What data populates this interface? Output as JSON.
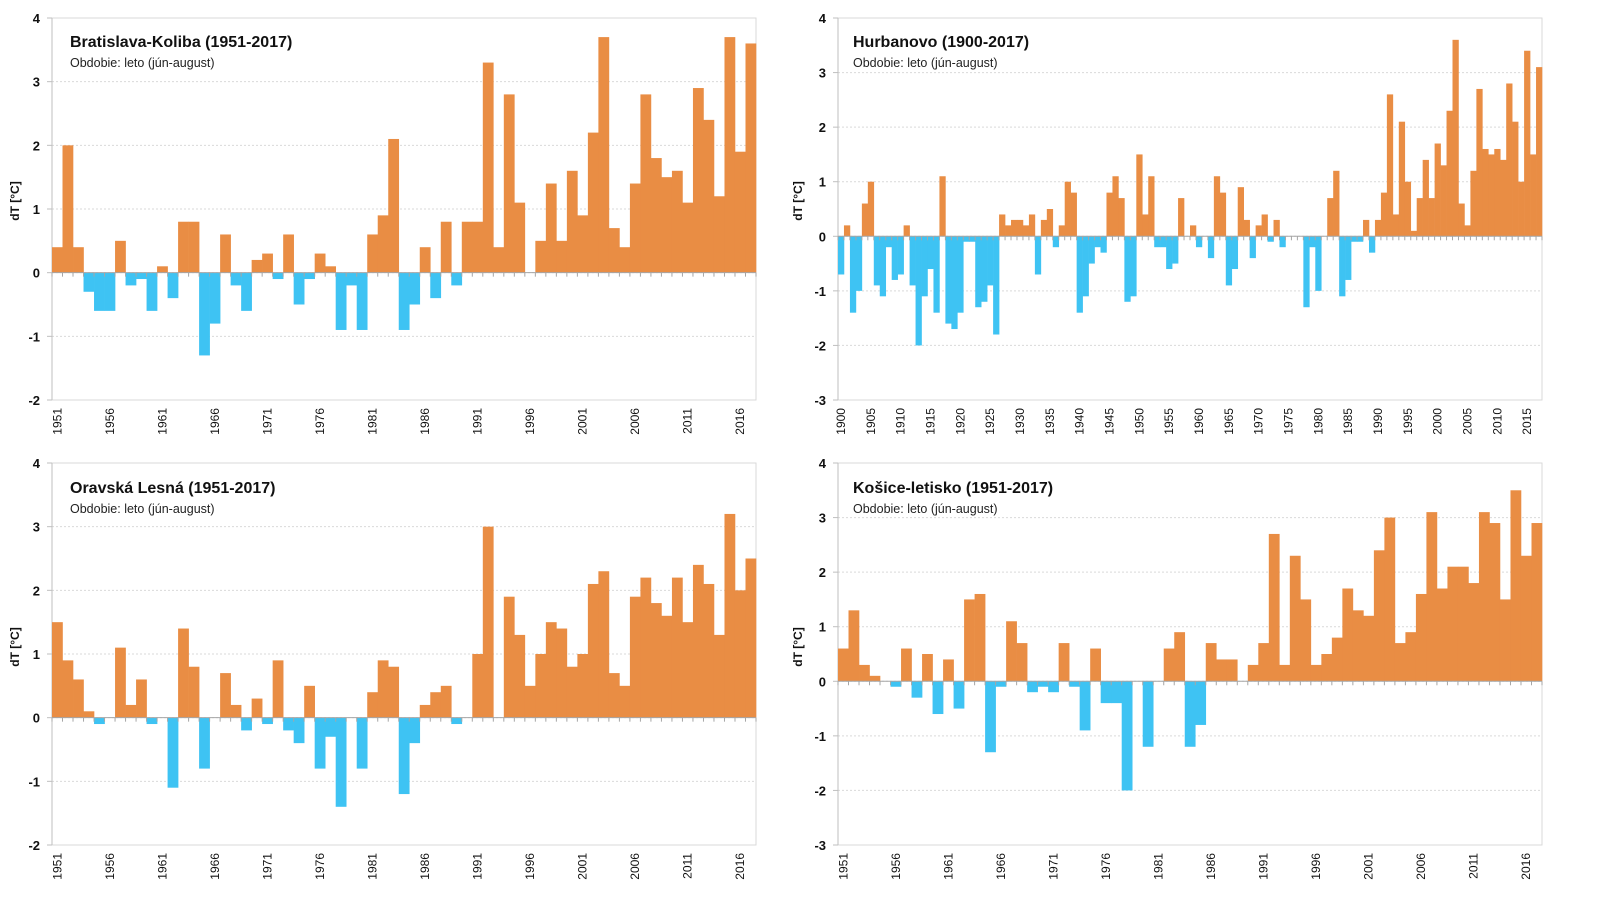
{
  "colors": {
    "positive": "#E98D44",
    "negative": "#3EC3F3",
    "grid": "#d9d9d9",
    "axis": "#bfbfbf"
  },
  "chart_data": [
    {
      "type": "bar",
      "title": "Bratislava-Koliba (1951-2017)",
      "subtitle": "Obdobie: leto (jún-august)",
      "xlabel": "",
      "ylabel": "dT [°C]",
      "ylim": [
        -2,
        4
      ],
      "yticks": [
        4,
        3,
        2,
        1,
        0,
        -1,
        -2
      ],
      "x_start": 1951,
      "x_end": 2017,
      "xtick_step": 5,
      "grid": true,
      "values": [
        0.4,
        2.0,
        0.4,
        -0.3,
        -0.6,
        -0.6,
        0.5,
        -0.2,
        -0.1,
        -0.6,
        0.1,
        -0.4,
        0.8,
        0.8,
        -1.3,
        -0.8,
        0.6,
        -0.2,
        -0.6,
        0.2,
        0.3,
        -0.1,
        0.6,
        -0.5,
        -0.1,
        0.3,
        0.1,
        -0.9,
        -0.2,
        -0.9,
        0.6,
        0.9,
        2.1,
        -0.9,
        -0.5,
        0.4,
        -0.4,
        0.8,
        -0.2,
        0.8,
        0.8,
        3.3,
        0.4,
        2.8,
        1.1,
        0.0,
        0.5,
        1.4,
        0.5,
        1.6,
        0.9,
        2.2,
        3.7,
        0.7,
        0.4,
        1.4,
        2.8,
        1.8,
        1.5,
        1.6,
        1.1,
        2.9,
        2.4,
        1.2,
        3.7,
        1.9,
        3.6
      ]
    },
    {
      "type": "bar",
      "title": "Hurbanovo (1900-2017)",
      "subtitle": "Obdobie: leto (jún-august)",
      "xlabel": "",
      "ylabel": "dT [°C]",
      "ylim": [
        -3,
        4
      ],
      "yticks": [
        4,
        3,
        2,
        1,
        0,
        -1,
        -2,
        -3
      ],
      "x_start": 1900,
      "x_end": 2017,
      "xtick_step": 5,
      "grid": true,
      "values": [
        -0.7,
        0.2,
        -1.4,
        -1.0,
        0.6,
        1.0,
        -0.9,
        -1.1,
        -0.2,
        -0.8,
        -0.7,
        0.2,
        -0.9,
        -2.0,
        -1.1,
        -0.6,
        -1.4,
        1.1,
        -1.6,
        -1.7,
        -1.4,
        -0.1,
        -0.1,
        -1.3,
        -1.2,
        -0.9,
        -1.8,
        0.4,
        0.2,
        0.3,
        0.3,
        0.2,
        0.4,
        -0.7,
        0.3,
        0.5,
        -0.2,
        0.2,
        1.0,
        0.8,
        -1.4,
        -1.1,
        -0.5,
        -0.2,
        -0.3,
        0.8,
        1.1,
        0.7,
        -1.2,
        -1.1,
        1.5,
        0.4,
        1.1,
        -0.2,
        -0.2,
        -0.6,
        -0.5,
        0.7,
        0.0,
        0.2,
        -0.2,
        0.0,
        -0.4,
        1.1,
        0.8,
        -0.9,
        -0.6,
        0.9,
        0.3,
        -0.4,
        0.2,
        0.4,
        -0.1,
        0.3,
        -0.2,
        0.0,
        0.0,
        0.0,
        -1.3,
        -0.2,
        -1.0,
        0.0,
        0.7,
        1.2,
        -1.1,
        -0.8,
        -0.1,
        -0.1,
        0.3,
        -0.3,
        0.3,
        0.8,
        2.6,
        0.4,
        2.1,
        1.0,
        0.1,
        0.7,
        1.4,
        0.7,
        1.7,
        1.3,
        2.3,
        3.6,
        0.6,
        0.2,
        1.2,
        2.7,
        1.6,
        1.5,
        1.6,
        1.4,
        2.8,
        2.1,
        1.0,
        3.4,
        1.5,
        3.1
      ]
    },
    {
      "type": "bar",
      "title": "Oravská Lesná (1951-2017)",
      "subtitle": "Obdobie: leto (jún-august)",
      "xlabel": "",
      "ylabel": "dT [°C]",
      "ylim": [
        -2,
        4
      ],
      "yticks": [
        4,
        3,
        2,
        1,
        0,
        -1,
        -2
      ],
      "x_start": 1951,
      "x_end": 2017,
      "xtick_step": 5,
      "grid": true,
      "values": [
        1.5,
        0.9,
        0.6,
        0.1,
        -0.1,
        0.0,
        1.1,
        0.2,
        0.6,
        -0.1,
        0.0,
        -1.1,
        1.4,
        0.8,
        -0.8,
        0.0,
        0.7,
        0.2,
        -0.2,
        0.3,
        -0.1,
        0.9,
        -0.2,
        -0.4,
        0.5,
        -0.8,
        -0.3,
        -1.4,
        0.0,
        -0.8,
        0.4,
        0.9,
        0.8,
        -1.2,
        -0.4,
        0.2,
        0.4,
        0.5,
        -0.1,
        0.0,
        1.0,
        3.0,
        0.0,
        1.9,
        1.3,
        0.5,
        1.0,
        1.5,
        1.4,
        0.8,
        1.0,
        2.1,
        2.3,
        0.7,
        0.5,
        1.9,
        2.2,
        1.8,
        1.6,
        2.2,
        1.5,
        2.4,
        2.1,
        1.3,
        3.2,
        2.0,
        2.5
      ]
    },
    {
      "type": "bar",
      "title": "Košice-letisko (1951-2017)",
      "subtitle": "Obdobie: leto (jún-august)",
      "xlabel": "",
      "ylabel": "dT [°C]",
      "ylim": [
        -3,
        4
      ],
      "yticks": [
        4,
        3,
        2,
        1,
        0,
        -1,
        -2,
        -3
      ],
      "x_start": 1951,
      "x_end": 2017,
      "xtick_step": 5,
      "grid": true,
      "values": [
        0.6,
        1.3,
        0.3,
        0.1,
        0.0,
        -0.1,
        0.6,
        -0.3,
        0.5,
        -0.6,
        0.4,
        -0.5,
        1.5,
        1.6,
        -1.3,
        -0.1,
        1.1,
        0.7,
        -0.2,
        -0.1,
        -0.2,
        0.7,
        -0.1,
        -0.9,
        0.6,
        -0.4,
        -0.4,
        -2.0,
        0.0,
        -1.2,
        0.0,
        0.6,
        0.9,
        -1.2,
        -0.8,
        0.7,
        0.4,
        0.4,
        0.0,
        0.3,
        0.7,
        2.7,
        0.3,
        2.3,
        1.5,
        0.3,
        0.5,
        0.8,
        1.7,
        1.3,
        1.2,
        2.4,
        3.0,
        0.7,
        0.9,
        1.6,
        3.1,
        1.7,
        2.1,
        2.1,
        1.8,
        3.1,
        2.9,
        1.5,
        3.5,
        2.3,
        2.9
      ]
    }
  ]
}
